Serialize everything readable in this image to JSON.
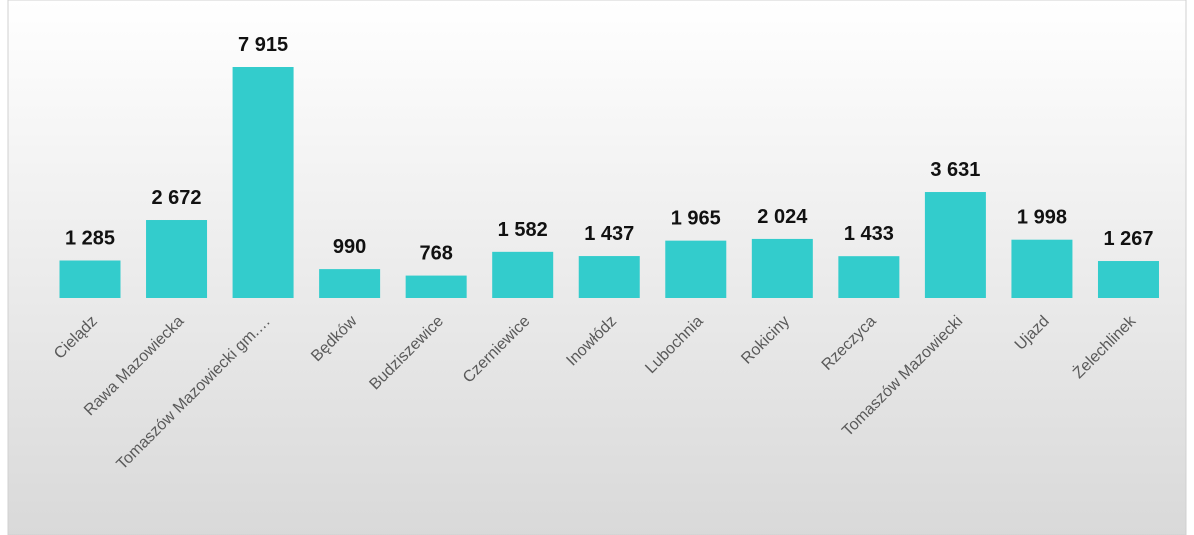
{
  "chart_data": {
    "type": "bar",
    "categories": [
      "Cielądz",
      "Rawa Mazowiecka",
      "Tomaszów Mazowiecki gm.…",
      "Będków",
      "Budziszewice",
      "Czerniewice",
      "Inowłódz",
      "Lubochnia",
      "Rokiciny",
      "Rzeczyca",
      "Tomaszów Mazowiecki",
      "Ujazd",
      "Żelechlinek"
    ],
    "values": [
      1285,
      2672,
      7915,
      990,
      768,
      1582,
      1437,
      1965,
      2024,
      1433,
      3631,
      1998,
      1267
    ],
    "value_labels": [
      "1 285",
      "2 672",
      "7 915",
      "990",
      "768",
      "1 582",
      "1 437",
      "1 965",
      "2 024",
      "1 433",
      "3 631",
      "1 998",
      "1 267"
    ],
    "color": "#33cccc"
  }
}
